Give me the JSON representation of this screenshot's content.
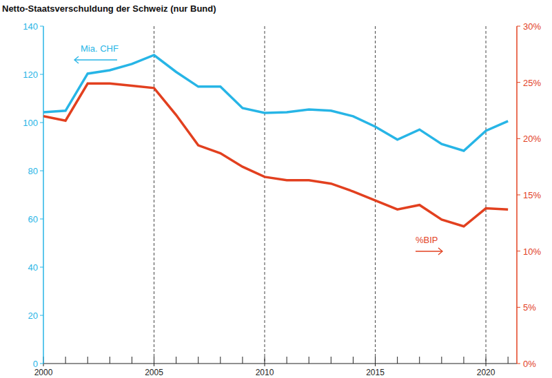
{
  "chart_data": {
    "type": "line",
    "title": "Netto-Staatsverschuldung der Schweiz (nur Bund)",
    "x": [
      2000,
      2001,
      2002,
      2003,
      2004,
      2005,
      2006,
      2007,
      2008,
      2009,
      2010,
      2011,
      2012,
      2013,
      2014,
      2015,
      2016,
      2017,
      2018,
      2019,
      2020,
      2021
    ],
    "series": [
      {
        "name": "Mia. CHF",
        "color": "#27b5e6",
        "values": [
          104.3,
          104.9,
          120.3,
          121.7,
          124.3,
          128,
          121,
          114.9,
          114.9,
          106,
          104,
          104.3,
          105.4,
          104.9,
          102.6,
          98.3,
          92.9,
          97.1,
          91.1,
          88.3,
          96.6,
          100.6
        ]
      },
      {
        "name": "%BIP",
        "color": "#e2401f",
        "axis": "y2",
        "values": [
          22.0,
          21.6,
          24.9,
          24.9,
          24.7,
          24.5,
          22.1,
          19.4,
          18.7,
          17.5,
          16.6,
          16.3,
          16.3,
          16.0,
          15.3,
          14.5,
          13.7,
          14.1,
          12.8,
          12.2,
          13.8,
          13.7
        ]
      }
    ],
    "xlim": [
      2000,
      2021.4
    ],
    "xticks": [
      2000,
      2005,
      2010,
      2015,
      2020
    ],
    "ylim": [
      0,
      140
    ],
    "yticks": [
      0,
      20,
      40,
      60,
      80,
      100,
      120,
      140
    ],
    "y2lim": [
      0,
      30
    ],
    "y2ticks": [
      {
        "value": 0,
        "label": "0%"
      },
      {
        "value": 5,
        "label": "5%"
      },
      {
        "value": 10,
        "label": "10%"
      },
      {
        "value": 15,
        "label": "15%"
      },
      {
        "value": 20,
        "label": "20%"
      },
      {
        "value": 25,
        "label": "25%"
      },
      {
        "value": 30,
        "label": "30%"
      }
    ],
    "grid": true
  }
}
